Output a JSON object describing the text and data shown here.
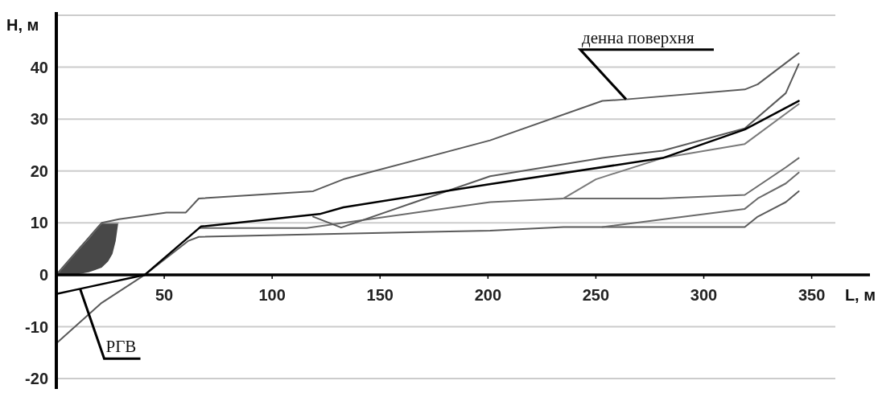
{
  "chart_data": {
    "type": "line",
    "xlabel": "L, м",
    "ylabel": "H, м",
    "xlim": [
      0,
      377
    ],
    "ylim": [
      -22,
      50
    ],
    "xticks": [
      50,
      100,
      150,
      200,
      250,
      300,
      350
    ],
    "yticks": [
      -20,
      -10,
      0,
      10,
      20,
      30,
      40,
      {
        "value": 50,
        "label": null
      }
    ],
    "grid": "y",
    "line_style": "solid",
    "annotations": [
      {
        "text": "денна поверхня",
        "x": 264,
        "y": 33.8
      },
      {
        "text": "РГВ",
        "x": 11,
        "y": -2.7
      }
    ],
    "series": [
      {
        "color": "#b0b0b0",
        "x": [
          0,
          5,
          10,
          15,
          18,
          21,
          24,
          26,
          27.5,
          28.7
        ],
        "values": [
          0,
          2.4,
          4.8,
          7.1,
          8.6,
          10,
          10,
          10,
          10,
          10
        ],
        "upper": [
          0,
          2.4,
          4.8,
          7.1,
          8.6,
          10,
          10,
          10,
          10,
          10
        ],
        "lower": [
          0,
          0,
          0.1,
          0.5,
          0.9,
          1.4,
          2.6,
          4,
          6.5,
          10
        ]
      },
      {
        "color": "#5a5a5a",
        "x": [
          0,
          21,
          29,
          51,
          60,
          66,
          119,
          133,
          201,
          253,
          264,
          319,
          325,
          344
        ],
        "values": [
          0,
          10,
          10.7,
          12,
          12,
          14.7,
          16.1,
          18.4,
          25.9,
          33.5,
          33.8,
          35.7,
          36.7,
          42.7
        ]
      },
      {
        "color": "#6a6a6a",
        "x": [
          66,
          116,
          201,
          235,
          280,
          319,
          338,
          344
        ],
        "values": [
          9,
          9,
          14,
          14.7,
          14.7,
          15.4,
          20.7,
          22.5
        ]
      },
      {
        "color": "#5a5a5a",
        "x": [
          0,
          21,
          41,
          61,
          66,
          120,
          201,
          235,
          319,
          325,
          338,
          344
        ],
        "values": [
          -13.2,
          -5.4,
          0,
          6.5,
          7.3,
          7.8,
          8.5,
          9.2,
          9.2,
          11.2,
          14,
          16.1
        ]
      },
      {
        "color": "#6a6a6a",
        "x": [
          253,
          319,
          325,
          338,
          344
        ],
        "values": [
          9.2,
          12.7,
          14.7,
          17.6,
          19.7
        ]
      },
      {
        "color": "#7a7a7a",
        "x": [
          235,
          250,
          281,
          319,
          344
        ],
        "values": [
          14.7,
          18.4,
          22.5,
          25.2,
          32.9
        ]
      },
      {
        "color": "#5a5a5a",
        "x": [
          119,
          132,
          201,
          253,
          264,
          281,
          319,
          338,
          344
        ],
        "values": [
          11.2,
          9.1,
          19,
          22.5,
          23.1,
          23.9,
          28.2,
          35,
          40.6
        ]
      },
      {
        "color": "#000000",
        "x": [
          0,
          11,
          41,
          67,
          122,
          133,
          200,
          281,
          319,
          344
        ],
        "values": [
          -3.7,
          -2.7,
          0,
          9.3,
          11.7,
          13,
          17.4,
          22.5,
          28,
          33.5
        ]
      }
    ]
  }
}
